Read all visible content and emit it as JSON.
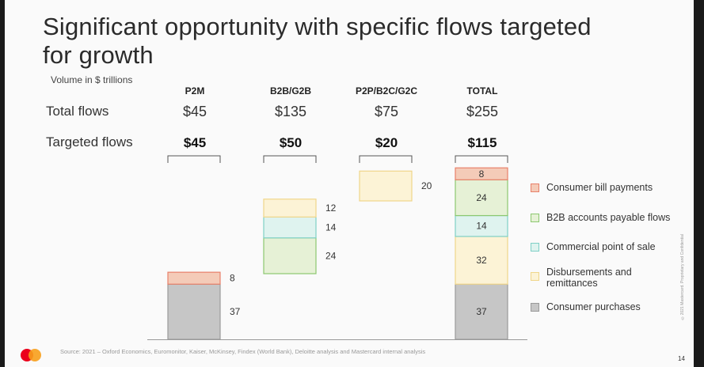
{
  "title": "Significant opportunity with specific flows targeted for growth",
  "units_label": "Volume in $ trillions",
  "row_labels": {
    "total_flows": "Total flows",
    "targeted_flows": "Targeted flows"
  },
  "columns": [
    {
      "header": "P2M",
      "total": "$45",
      "targeted": "$45"
    },
    {
      "header": "B2B/G2B",
      "total": "$135",
      "targeted": "$50"
    },
    {
      "header": "P2P/B2C/G2C",
      "total": "$75",
      "targeted": "$20"
    },
    {
      "header": "TOTAL",
      "total": "$255",
      "targeted": "$115"
    }
  ],
  "legend": [
    {
      "label": "Consumer bill payments",
      "color": "#f4cbb8",
      "border": "#e8806a"
    },
    {
      "label": "B2B accounts payable flows",
      "color": "#e6f1d6",
      "border": "#8cc870"
    },
    {
      "label": "Commercial point of sale",
      "color": "#dff3ef",
      "border": "#7fd0c6"
    },
    {
      "label": "Disbursements and remittances",
      "color": "#fcf3d6",
      "border": "#f0d68a"
    },
    {
      "label": "Consumer purchases",
      "color": "#c6c6c6",
      "border": "#9a9a9a"
    }
  ],
  "chart_data": {
    "type": "bar",
    "stacked": true,
    "categories": [
      "P2M",
      "B2B/G2B",
      "P2P/B2C/G2C",
      "TOTAL"
    ],
    "series": [
      {
        "name": "Consumer purchases",
        "values": [
          37,
          0,
          0,
          37
        ]
      },
      {
        "name": "Disbursements and remittances",
        "values": [
          0,
          12,
          20,
          32
        ]
      },
      {
        "name": "Commercial point of sale",
        "values": [
          0,
          14,
          0,
          14
        ]
      },
      {
        "name": "B2B accounts payable flows",
        "values": [
          0,
          24,
          0,
          24
        ]
      },
      {
        "name": "Consumer bill payments",
        "values": [
          8,
          0,
          0,
          8
        ]
      }
    ],
    "stack_order": [
      [
        "Consumer purchases",
        "Consumer bill payments"
      ],
      [
        "B2B accounts payable flows",
        "Commercial point of sale",
        "Disbursements and remittances"
      ],
      [
        "Disbursements and remittances"
      ],
      [
        "Consumer purchases",
        "Disbursements and remittances",
        "Commercial point of sale",
        "B2B accounts payable flows",
        "Consumer bill payments"
      ]
    ],
    "ylabel": "Volume in $ trillions"
  },
  "footer": {
    "source": "Source: 2021 – Oxford Economics, Euromonitor, Kaiser, McKinsey, Findex (World Bank), Deloitte analysis and Mastercard internal analysis",
    "page": "14",
    "confidential": "©2021 Mastercard. Proprietary and Confidential"
  },
  "logo": "mastercard-logo"
}
